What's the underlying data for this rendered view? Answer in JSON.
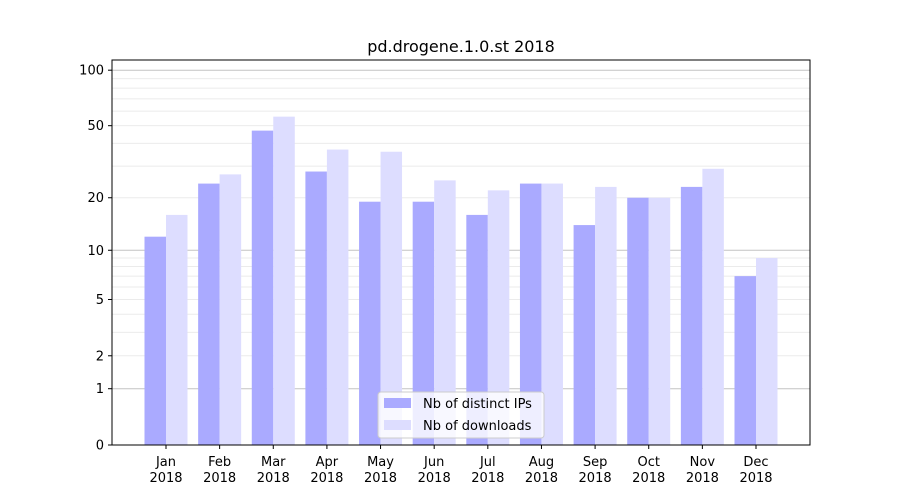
{
  "chart_data": {
    "type": "bar",
    "title": "pd.drogene.1.0.st 2018",
    "xlabel": "",
    "ylabel": "",
    "yscale": "symlog (log10(1+y))",
    "ylim": [
      0,
      113
    ],
    "yticks": [
      0,
      1,
      2,
      5,
      10,
      20,
      50,
      100
    ],
    "grid": true,
    "legend_position": "bottom-center",
    "categories": [
      "Jan\n2018",
      "Feb\n2018",
      "Mar\n2018",
      "Apr\n2018",
      "May\n2018",
      "Jun\n2018",
      "Jul\n2018",
      "Aug\n2018",
      "Sep\n2018",
      "Oct\n2018",
      "Nov\n2018",
      "Dec\n2018"
    ],
    "category_months": [
      "Jan",
      "Feb",
      "Mar",
      "Apr",
      "May",
      "Jun",
      "Jul",
      "Aug",
      "Sep",
      "Oct",
      "Nov",
      "Dec"
    ],
    "category_years": [
      "2018",
      "2018",
      "2018",
      "2018",
      "2018",
      "2018",
      "2018",
      "2018",
      "2018",
      "2018",
      "2018",
      "2018"
    ],
    "series": [
      {
        "name": "Nb of distinct IPs",
        "color": "#aaaaff",
        "values": [
          12,
          24,
          47,
          28,
          19,
          19,
          16,
          24,
          14,
          20,
          23,
          7
        ]
      },
      {
        "name": "Nb of downloads",
        "color": "#ddddff",
        "values": [
          16,
          27,
          56,
          37,
          36,
          25,
          22,
          24,
          23,
          20,
          29,
          9
        ]
      }
    ]
  }
}
